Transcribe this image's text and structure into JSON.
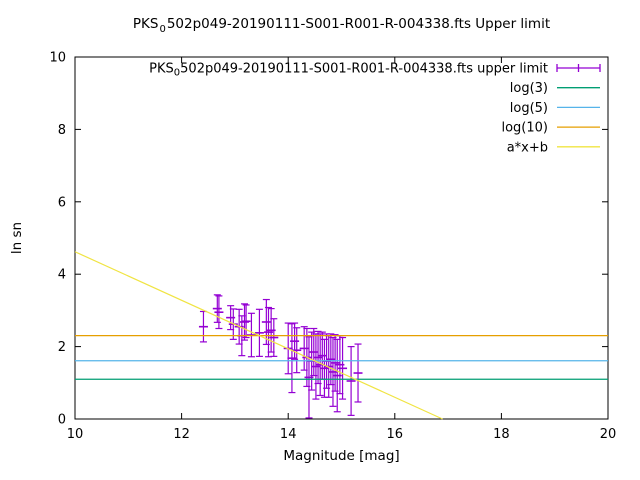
{
  "chart_data": {
    "type": "scatter",
    "title": "PKS_0502p049-20190111-S001-R001-R-004338.fts Upper limit",
    "title_parts": {
      "prefix": "PKS",
      "sub": "0",
      "rest": "502p049-20190111-S001-R001-R-004338.fts Upper limit"
    },
    "xlabel": "Magnitude [mag]",
    "ylabel": "ln sn",
    "xlim": [
      10,
      20
    ],
    "ylim": [
      0,
      10
    ],
    "xticks": [
      10,
      12,
      14,
      16,
      18,
      20
    ],
    "yticks": [
      0,
      2,
      4,
      6,
      8,
      10
    ],
    "grid": false,
    "legend_position": "top-right-inside",
    "colors": {
      "points": "#9400d3",
      "log3": "#009e73",
      "log5": "#56b4e9",
      "log10": "#e69f00",
      "fit": "#f0e442",
      "axis": "#000000"
    },
    "series": [
      {
        "name": "PKS_0502p049-20190111-S001-R001-R-004338.fts upper limit",
        "label_parts": {
          "prefix": "PKS",
          "sub": "0",
          "rest": "502p049-20190111-S001-R001-R-004338.fts upper limit"
        },
        "type": "errorbars",
        "sample": "errorbar",
        "color": "#9400d3",
        "points": [
          [
            12.41,
            2.55,
            0.42
          ],
          [
            12.67,
            3.05,
            0.38
          ],
          [
            12.7,
            2.95,
            0.45
          ],
          [
            12.92,
            2.8,
            0.33
          ],
          [
            12.97,
            2.62,
            0.42
          ],
          [
            13.08,
            2.55,
            0.48
          ],
          [
            13.13,
            2.3,
            0.55
          ],
          [
            13.18,
            2.68,
            0.5
          ],
          [
            13.21,
            2.7,
            0.45
          ],
          [
            13.31,
            2.32,
            0.6
          ],
          [
            13.46,
            2.38,
            0.65
          ],
          [
            13.59,
            2.68,
            0.62
          ],
          [
            13.63,
            2.4,
            0.68
          ],
          [
            13.68,
            2.45,
            0.6
          ],
          [
            13.73,
            2.25,
            0.52
          ],
          [
            14.0,
            1.95,
            0.7
          ],
          [
            14.07,
            1.68,
            0.95
          ],
          [
            14.12,
            2.15,
            0.5
          ],
          [
            14.16,
            1.9,
            0.62
          ],
          [
            14.3,
            1.95,
            0.6
          ],
          [
            14.35,
            1.7,
            0.8
          ],
          [
            14.39,
            1.15,
            1.12
          ],
          [
            14.44,
            1.6,
            0.8
          ],
          [
            14.48,
            1.85,
            0.65
          ],
          [
            14.52,
            1.45,
            0.9
          ],
          [
            14.56,
            1.7,
            0.72
          ],
          [
            14.6,
            1.5,
            0.85
          ],
          [
            14.64,
            1.75,
            0.65
          ],
          [
            14.68,
            1.4,
            0.8
          ],
          [
            14.72,
            1.6,
            0.75
          ],
          [
            14.76,
            1.45,
            0.85
          ],
          [
            14.8,
            1.65,
            0.7
          ],
          [
            14.84,
            1.3,
            0.95
          ],
          [
            14.88,
            1.55,
            0.78
          ],
          [
            14.92,
            1.2,
            1.0
          ],
          [
            14.97,
            1.5,
            0.8
          ],
          [
            15.02,
            1.4,
            0.85
          ],
          [
            15.18,
            1.05,
            0.95
          ],
          [
            15.31,
            1.27,
            0.8
          ]
        ]
      },
      {
        "name": "log(3)",
        "type": "hline",
        "sample": "line",
        "color": "#009e73",
        "y": 1.0986
      },
      {
        "name": "log(5)",
        "type": "hline",
        "sample": "line",
        "color": "#56b4e9",
        "y": 1.6094
      },
      {
        "name": "log(10)",
        "type": "hline",
        "sample": "line",
        "color": "#e69f00",
        "y": 2.3026
      },
      {
        "name": "a*x+b",
        "type": "linear",
        "sample": "line",
        "color": "#f0e442",
        "a": -0.67,
        "b": 11.32
      }
    ]
  }
}
